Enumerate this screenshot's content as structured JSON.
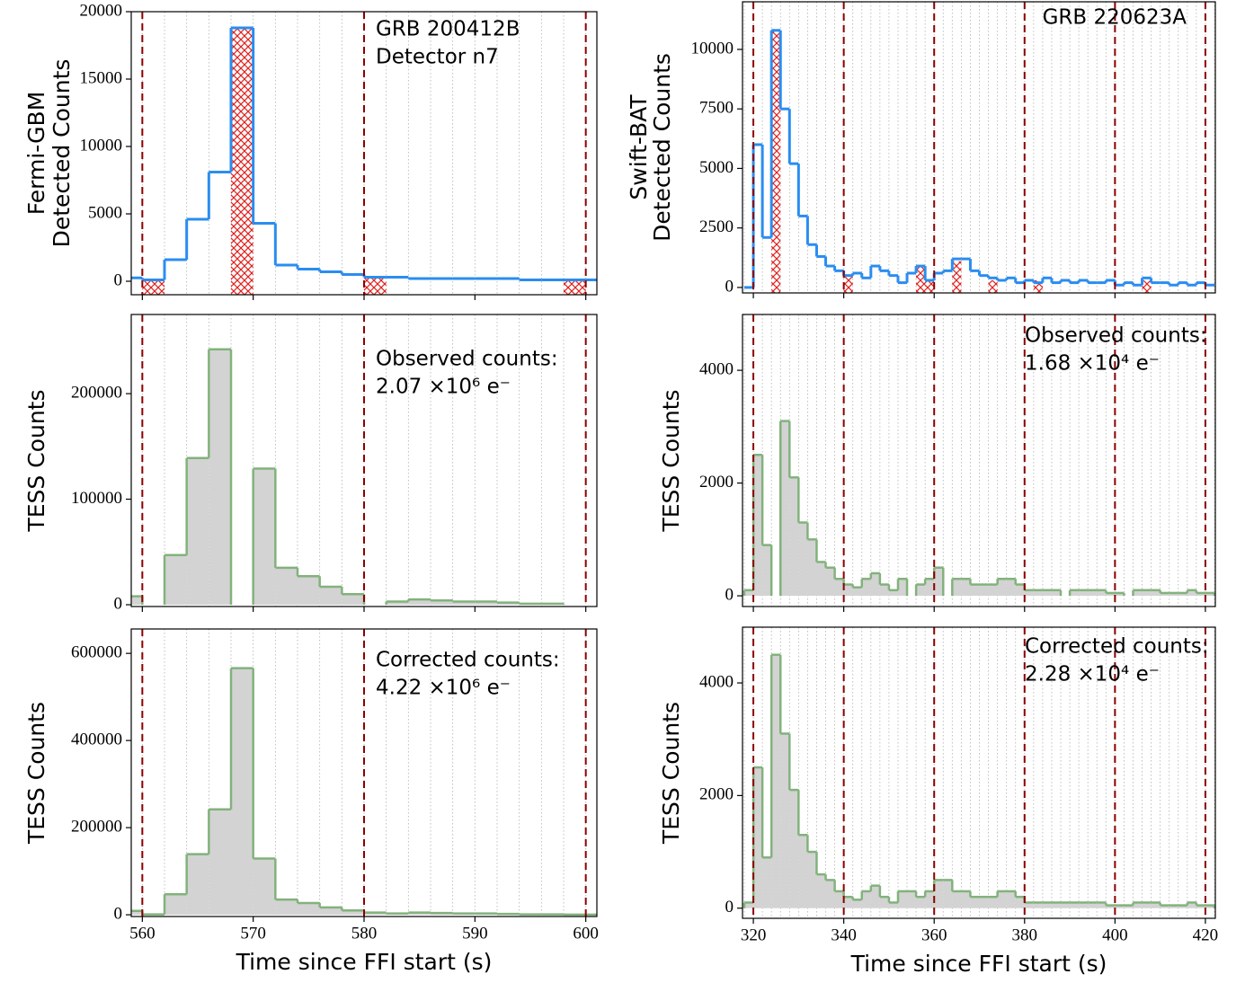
{
  "chart_data": [
    {
      "type": "histogram",
      "ylabel": [
        "Fermi-GBM",
        "Detected Counts"
      ],
      "annotation": [
        "GRB 200412B",
        "Detector n7"
      ],
      "xlim": [
        559,
        601
      ],
      "xticks": [
        560,
        570,
        580,
        590,
        600
      ],
      "ylim": [
        -1000,
        20000
      ],
      "yticks": [
        0,
        5000,
        10000,
        15000,
        20000
      ],
      "vlines": [
        560,
        580,
        600
      ],
      "vline_color": "#8b0000",
      "bins": [
        558,
        560,
        562,
        564,
        566,
        568,
        570,
        572,
        574,
        576,
        578,
        580,
        582,
        584,
        586,
        588,
        590,
        592,
        594,
        596,
        598,
        600,
        602
      ],
      "series": [
        {
          "color": "#d62728",
          "hatch": true,
          "values": [
            null,
            0,
            null,
            null,
            null,
            18800,
            null,
            null,
            null,
            null,
            null,
            300,
            null,
            null,
            null,
            null,
            null,
            null,
            null,
            null,
            100,
            null
          ]
        },
        {
          "color": "#2a8df0",
          "fill": false,
          "values": [
            250,
            100,
            1600,
            4600,
            8100,
            18800,
            4300,
            1200,
            900,
            700,
            500,
            300,
            300,
            200,
            200,
            200,
            200,
            200,
            100,
            100,
            100,
            100
          ]
        }
      ]
    },
    {
      "type": "histogram",
      "ylabel": [
        "TESS Counts"
      ],
      "annotation": [
        "Observed counts:",
        "2.07 ×10⁶ e⁻"
      ],
      "xlim": [
        559,
        601
      ],
      "xticks": [
        560,
        570,
        580,
        590,
        600
      ],
      "ylim": [
        -1700,
        275000
      ],
      "yticks": [
        0,
        100000,
        200000
      ],
      "vlines": [
        560,
        580,
        600
      ],
      "vline_color": "#8b0000",
      "bins": [
        558,
        560,
        562,
        564,
        566,
        568,
        570,
        572,
        574,
        576,
        578,
        580,
        582,
        584,
        586,
        588,
        590,
        592,
        594,
        596,
        598,
        600,
        602
      ],
      "series": [
        {
          "color": "#82b27c",
          "fill": true,
          "values": [
            8000,
            null,
            47000,
            139000,
            242000,
            null,
            129000,
            35000,
            27000,
            17000,
            10000,
            null,
            3000,
            5000,
            4000,
            3000,
            3000,
            2000,
            1000,
            1000,
            null,
            null
          ]
        }
      ]
    },
    {
      "type": "histogram",
      "ylabel": [
        "TESS Counts"
      ],
      "annotation": [
        "Corrected counts:",
        "4.22 ×10⁶ e⁻"
      ],
      "xlabel": "Time since FFI start (s)",
      "xlim": [
        559,
        601
      ],
      "xticks": [
        560,
        570,
        580,
        590,
        600
      ],
      "ylim": [
        -4000,
        656000
      ],
      "yticks": [
        0,
        200000,
        400000,
        600000
      ],
      "vlines": [
        560,
        580,
        600
      ],
      "vline_color": "#8b0000",
      "bins": [
        558,
        560,
        562,
        564,
        566,
        568,
        570,
        572,
        574,
        576,
        578,
        580,
        582,
        584,
        586,
        588,
        590,
        592,
        594,
        596,
        598,
        600,
        602
      ],
      "series": [
        {
          "color": "#82b27c",
          "fill": true,
          "values": [
            9000,
            1000,
            47000,
            139000,
            242000,
            566000,
            129000,
            35000,
            27000,
            17000,
            10000,
            5000,
            3000,
            5000,
            4000,
            3000,
            3000,
            2000,
            1000,
            1000,
            500,
            500
          ]
        }
      ]
    },
    {
      "type": "histogram",
      "ylabel": [
        "Swift-BAT",
        "Detected Counts"
      ],
      "annotation": [
        "GRB 220623A"
      ],
      "xlim": [
        317.6,
        422.2
      ],
      "xticks": [
        320,
        340,
        360,
        380,
        400,
        420
      ],
      "ylim": [
        -230,
        12000
      ],
      "yticks": [
        0,
        2500,
        5000,
        7500,
        10000
      ],
      "vlines": [
        320,
        340,
        360,
        380,
        400,
        420
      ],
      "vline_color": "#8b0000",
      "bins": [
        318,
        320,
        322,
        324,
        326,
        328,
        330,
        332,
        334,
        336,
        338,
        340,
        342,
        344,
        346,
        348,
        350,
        352,
        354,
        356,
        358,
        360,
        362,
        364,
        366,
        368,
        370,
        372,
        374,
        376,
        378,
        380,
        382,
        384,
        386,
        388,
        390,
        392,
        394,
        396,
        398,
        400,
        402,
        404,
        406,
        408,
        410,
        412,
        414,
        416,
        418,
        420,
        422
      ],
      "series": [
        {
          "color": "#d62728",
          "hatch": true,
          "values": [
            null,
            null,
            null,
            10800,
            null,
            null,
            null,
            null,
            null,
            null,
            null,
            500,
            null,
            null,
            null,
            null,
            null,
            null,
            null,
            900,
            300,
            null,
            null,
            1100,
            null,
            null,
            null,
            300,
            null,
            null,
            null,
            null,
            300,
            null,
            null,
            null,
            null,
            null,
            null,
            null,
            null,
            null,
            null,
            null,
            300,
            null,
            null,
            null,
            null,
            null,
            null,
            null
          ]
        },
        {
          "color": "#2a8df0",
          "fill": false,
          "values": [
            0,
            6000,
            2100,
            10800,
            7500,
            5200,
            3000,
            1800,
            1300,
            900,
            700,
            500,
            600,
            400,
            900,
            700,
            500,
            200,
            600,
            900,
            300,
            600,
            700,
            1200,
            1200,
            700,
            500,
            400,
            300,
            400,
            200,
            300,
            200,
            400,
            200,
            300,
            200,
            300,
            200,
            200,
            300,
            100,
            200,
            100,
            400,
            200,
            200,
            100,
            200,
            100,
            200,
            100
          ]
        }
      ]
    },
    {
      "type": "histogram",
      "ylabel": [
        "TESS Counts"
      ],
      "annotation": [
        "Observed counts:",
        "1.68 ×10⁴ e⁻"
      ],
      "xlim": [
        317.6,
        422.2
      ],
      "xticks": [
        320,
        340,
        360,
        380,
        400,
        420
      ],
      "ylim": [
        -190,
        4990
      ],
      "yticks": [
        0,
        2000,
        4000
      ],
      "vlines": [
        320,
        340,
        360,
        380,
        400,
        420
      ],
      "vline_color": "#8b0000",
      "bins": [
        318,
        320,
        322,
        324,
        326,
        328,
        330,
        332,
        334,
        336,
        338,
        340,
        342,
        344,
        346,
        348,
        350,
        352,
        354,
        356,
        358,
        360,
        362,
        364,
        366,
        368,
        370,
        372,
        374,
        376,
        378,
        380,
        382,
        384,
        386,
        388,
        390,
        392,
        394,
        396,
        398,
        400,
        402,
        404,
        406,
        408,
        410,
        412,
        414,
        416,
        418,
        420,
        422
      ],
      "series": [
        {
          "color": "#82b27c",
          "fill": true,
          "values": [
            100,
            2500,
            900,
            null,
            3100,
            2100,
            1300,
            1000,
            600,
            500,
            300,
            200,
            150,
            300,
            400,
            200,
            100,
            300,
            null,
            200,
            300,
            500,
            null,
            300,
            300,
            200,
            200,
            200,
            300,
            300,
            200,
            100,
            100,
            100,
            100,
            null,
            100,
            100,
            100,
            100,
            50,
            50,
            null,
            100,
            100,
            100,
            50,
            50,
            50,
            100,
            50,
            50
          ]
        }
      ]
    },
    {
      "type": "histogram",
      "ylabel": [
        "TESS Counts"
      ],
      "annotation": [
        "Corrected counts:",
        "2.28 ×10⁴ e⁻"
      ],
      "xlabel": "Time since FFI start (s)",
      "xlim": [
        317.6,
        422.2
      ],
      "xticks": [
        320,
        340,
        360,
        380,
        400,
        420
      ],
      "ylim": [
        -180,
        4990
      ],
      "yticks": [
        0,
        2000,
        4000
      ],
      "vlines": [
        320,
        340,
        360,
        380,
        400,
        420
      ],
      "vline_color": "#8b0000",
      "bins": [
        318,
        320,
        322,
        324,
        326,
        328,
        330,
        332,
        334,
        336,
        338,
        340,
        342,
        344,
        346,
        348,
        350,
        352,
        354,
        356,
        358,
        360,
        362,
        364,
        366,
        368,
        370,
        372,
        374,
        376,
        378,
        380,
        382,
        384,
        386,
        388,
        390,
        392,
        394,
        396,
        398,
        400,
        402,
        404,
        406,
        408,
        410,
        412,
        414,
        416,
        418,
        420,
        422
      ],
      "series": [
        {
          "color": "#82b27c",
          "fill": true,
          "values": [
            100,
            2500,
            900,
            4500,
            3100,
            2100,
            1300,
            1000,
            600,
            500,
            300,
            200,
            150,
            300,
            400,
            200,
            100,
            300,
            300,
            200,
            300,
            500,
            500,
            300,
            300,
            200,
            200,
            200,
            300,
            300,
            200,
            100,
            100,
            100,
            100,
            100,
            100,
            100,
            100,
            100,
            50,
            50,
            50,
            100,
            100,
            100,
            50,
            50,
            50,
            100,
            50,
            50
          ]
        }
      ]
    }
  ]
}
